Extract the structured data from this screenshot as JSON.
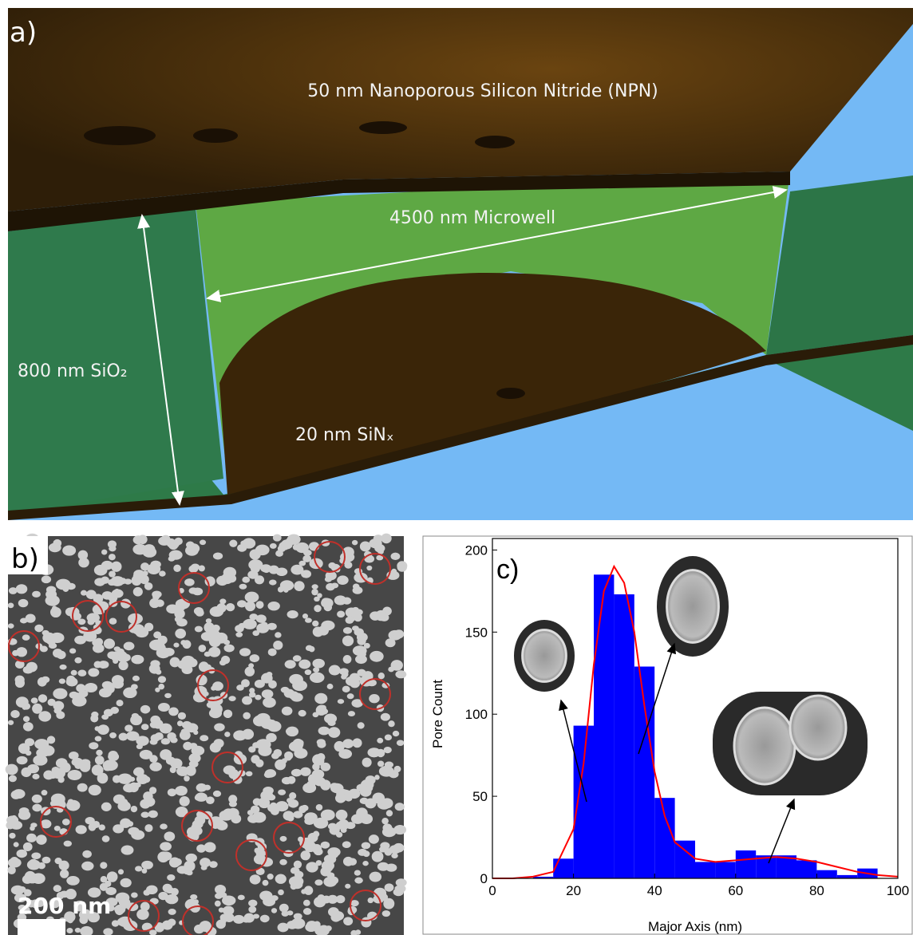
{
  "panel_a": {
    "label": "a)",
    "top_layer": "50 nm Nanoporous Silicon Nitride (NPN)",
    "well": "4500 nm Microwell",
    "oxide": "800 nm SiO₂",
    "bottom_layer": "20 nm SiNₓ"
  },
  "panel_b": {
    "label": "b)",
    "scale_bar": "200 nm"
  },
  "chart_data": {
    "type": "histogram",
    "panel_label": "c)",
    "xlabel": "Major Axis (nm)",
    "ylabel": "Pore Count",
    "bins": [
      10,
      15,
      20,
      25,
      30,
      35,
      40,
      45,
      50,
      55,
      60,
      65,
      70,
      75,
      80,
      85,
      90,
      95
    ],
    "values": [
      1,
      12,
      93,
      185,
      173,
      129,
      49,
      23,
      10,
      10,
      17,
      14,
      14,
      11,
      5,
      2,
      6
    ],
    "color": "#0000ff",
    "fit_curve": {
      "color": "#ff0000",
      "x": [
        0,
        5,
        10,
        15,
        20,
        22.5,
        25,
        27.5,
        30,
        32.5,
        35,
        37.5,
        40,
        42.5,
        45,
        50,
        55,
        60,
        65,
        70,
        75,
        80,
        85,
        90,
        95,
        100
      ],
      "values": [
        0,
        0,
        1,
        4,
        30,
        70,
        130,
        175,
        190,
        180,
        150,
        105,
        65,
        38,
        22,
        12,
        10,
        11,
        12,
        13,
        12,
        10,
        7,
        4,
        2,
        1
      ]
    },
    "xlim": [
      0,
      100
    ],
    "ylim": [
      0,
      207
    ],
    "xticks": [
      0,
      20,
      40,
      60,
      80,
      100
    ],
    "yticks": [
      0,
      50,
      100,
      150,
      200
    ]
  }
}
